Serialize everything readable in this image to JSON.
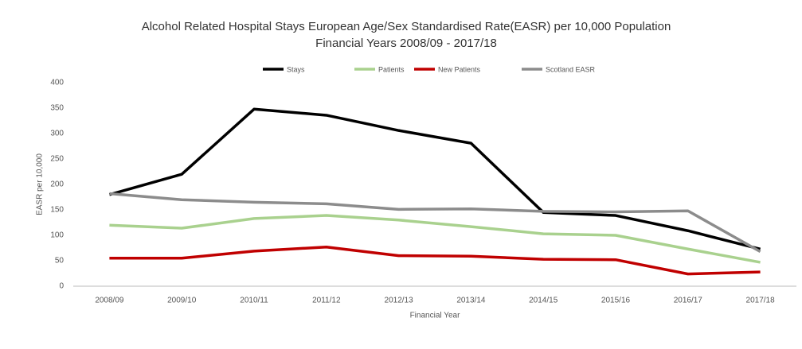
{
  "chart_data": {
    "type": "line",
    "title": "Alcohol Related Hospital Stays European Age/Sex Standardised Rate(EASR) per 10,000 Population",
    "subtitle": "Financial Years 2008/09 - 2017/18",
    "x_label": "Financial Year",
    "y_label": "EASR per 10,000",
    "categories": [
      "2008/09",
      "2009/10",
      "2010/11",
      "2011/12",
      "2012/13",
      "2013/14",
      "2014/15",
      "2015/16",
      "2016/17",
      "2017/18"
    ],
    "series": [
      {
        "name": "Stays",
        "color": "#000000",
        "values": [
          180,
          220,
          348,
          336,
          306,
          281,
          145,
          139,
          109,
          73
        ]
      },
      {
        "name": "Patients",
        "color": "#a9d18e",
        "values": [
          120,
          114,
          133,
          139,
          130,
          117,
          103,
          100,
          73,
          47
        ]
      },
      {
        "name": "New Patients",
        "color": "#c00000",
        "values": [
          55,
          55,
          69,
          77,
          60,
          59,
          53,
          52,
          24,
          28
        ]
      },
      {
        "name": "Scotland EASR",
        "color": "#8c8c8c",
        "values": [
          182,
          170,
          165,
          162,
          151,
          152,
          147,
          146,
          148,
          68
        ]
      }
    ],
    "ylim": [
      0,
      400
    ],
    "yticks": [
      0,
      50,
      100,
      150,
      200,
      250,
      300,
      350,
      400
    ],
    "grid": false,
    "legend": "top"
  }
}
